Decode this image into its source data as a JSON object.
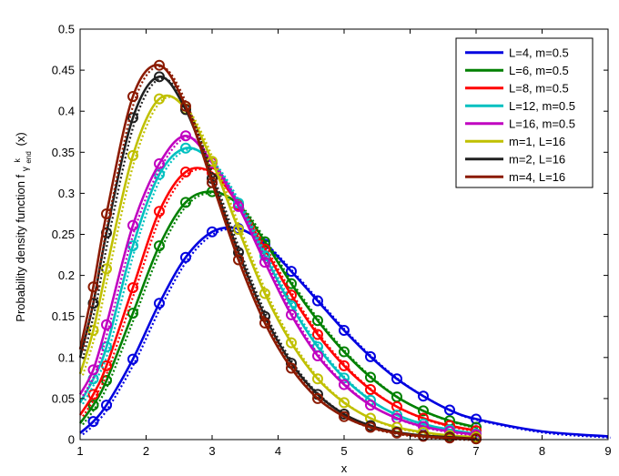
{
  "chart_data": {
    "type": "line",
    "title": "",
    "xlabel": "x",
    "ylabel": "Probability density function f",
    "ylabel_sub": "γ",
    "ylabel_subsub": "end",
    "ylabel_sup": "k",
    "ylabel_arg": "(x)",
    "xlim": [
      1,
      9
    ],
    "ylim": [
      0,
      0.5
    ],
    "xticks": [
      "1",
      "2",
      "3",
      "4",
      "5",
      "6",
      "7",
      "8",
      "9"
    ],
    "yticks": [
      "0",
      "0.05",
      "0.1",
      "0.15",
      "0.2",
      "0.25",
      "0.3",
      "0.35",
      "0.4",
      "0.45",
      "0.5"
    ],
    "grid": false,
    "legend_position": "top-right",
    "line_style_note": "solid line = one set, dotted line = other set, circle markers = third set",
    "series": [
      {
        "name": "L=4, m=0.5",
        "color": "#0000e0",
        "x": [
          1,
          1.2,
          1.4,
          1.8,
          2.2,
          2.6,
          3,
          3.4,
          3.8,
          4.2,
          4.6,
          5,
          5.4,
          5.8,
          6.2,
          6.6,
          7,
          8,
          9
        ],
        "y": [
          0.008,
          0.022,
          0.042,
          0.098,
          0.166,
          0.222,
          0.253,
          0.257,
          0.238,
          0.205,
          0.169,
          0.133,
          0.101,
          0.074,
          0.053,
          0.036,
          0.025,
          0.01,
          0.004
        ],
        "markers_x": [
          1.2,
          1.4,
          1.8,
          2.2,
          2.6,
          3,
          3.4,
          3.8,
          4.2,
          4.6,
          5,
          5.4,
          5.8,
          6.2,
          6.6,
          7
        ]
      },
      {
        "name": "L=6, m=0.5",
        "color": "#008000",
        "x": [
          1,
          1.2,
          1.4,
          1.8,
          2.2,
          2.6,
          3,
          3.4,
          3.8,
          4.2,
          4.6,
          5,
          5.4,
          5.8,
          6.2,
          6.6,
          7
        ],
        "y": [
          0.02,
          0.042,
          0.072,
          0.154,
          0.236,
          0.289,
          0.302,
          0.286,
          0.241,
          0.19,
          0.145,
          0.107,
          0.076,
          0.052,
          0.035,
          0.023,
          0.015
        ],
        "markers_x": [
          1.2,
          1.4,
          1.8,
          2.2,
          2.6,
          3,
          3.4,
          3.8,
          4.2,
          4.6,
          5,
          5.4,
          5.8,
          6.2,
          6.6,
          7
        ]
      },
      {
        "name": "L=8, m=0.5",
        "color": "#ff0000",
        "x": [
          1,
          1.2,
          1.4,
          1.8,
          2.2,
          2.6,
          3,
          3.4,
          3.8,
          4.2,
          4.6,
          5,
          5.4,
          5.8,
          6.2,
          6.6,
          7
        ],
        "y": [
          0.03,
          0.055,
          0.09,
          0.185,
          0.278,
          0.326,
          0.325,
          0.286,
          0.232,
          0.176,
          0.128,
          0.09,
          0.061,
          0.04,
          0.026,
          0.017,
          0.011
        ],
        "markers_x": [
          1.2,
          1.4,
          1.8,
          2.2,
          2.6,
          3,
          3.4,
          3.8,
          4.2,
          4.6,
          5,
          5.4,
          5.8,
          6.2,
          6.6,
          7
        ]
      },
      {
        "name": "L=12, m=0.5",
        "color": "#00c0c0",
        "x": [
          1,
          1.2,
          1.4,
          1.8,
          2.2,
          2.6,
          3,
          3.4,
          3.8,
          4.2,
          4.6,
          5,
          5.4,
          5.8,
          6.2,
          6.6,
          7
        ],
        "y": [
          0.045,
          0.074,
          0.113,
          0.236,
          0.323,
          0.355,
          0.338,
          0.288,
          0.224,
          0.163,
          0.113,
          0.075,
          0.048,
          0.03,
          0.019,
          0.012,
          0.007
        ],
        "markers_x": [
          1.2,
          1.4,
          1.8,
          2.2,
          2.6,
          3,
          3.4,
          3.8,
          4.2,
          4.6,
          5,
          5.4,
          5.8,
          6.2,
          6.6,
          7
        ]
      },
      {
        "name": "L=16, m=0.5",
        "color": "#c000c0",
        "x": [
          1,
          1.2,
          1.4,
          1.8,
          2.2,
          2.6,
          3,
          3.4,
          3.8,
          4.2,
          4.6,
          5,
          5.4,
          5.8,
          6.2,
          6.6,
          7
        ],
        "y": [
          0.055,
          0.085,
          0.14,
          0.261,
          0.336,
          0.37,
          0.337,
          0.284,
          0.216,
          0.152,
          0.102,
          0.067,
          0.042,
          0.026,
          0.016,
          0.01,
          0.006
        ],
        "markers_x": [
          1.2,
          1.4,
          1.8,
          2.2,
          2.6,
          3,
          3.4,
          3.8,
          4.2,
          4.6,
          5,
          5.4,
          5.8,
          6.2,
          6.6,
          7
        ]
      },
      {
        "name": "m=1, L=16",
        "color": "#c0c000",
        "x": [
          1,
          1.2,
          1.4,
          1.8,
          2.2,
          2.6,
          3,
          3.4,
          3.8,
          4.2,
          4.6,
          5,
          5.4,
          5.8,
          6.2,
          6.6,
          7
        ],
        "y": [
          0.08,
          0.133,
          0.208,
          0.346,
          0.415,
          0.403,
          0.339,
          0.256,
          0.178,
          0.118,
          0.074,
          0.045,
          0.026,
          0.015,
          0.009,
          0.005,
          0.003
        ],
        "markers_x": [
          1.2,
          1.4,
          1.8,
          2.2,
          2.6,
          3,
          3.4,
          3.8,
          4.2,
          4.6,
          5,
          5.4,
          5.8,
          6.2,
          6.6,
          7
        ]
      },
      {
        "name": "m=2, L=16",
        "color": "#202020",
        "x": [
          1,
          1.2,
          1.4,
          1.8,
          2.2,
          2.6,
          3,
          3.4,
          3.8,
          4.2,
          4.6,
          5,
          5.4,
          5.8,
          6.2,
          6.6,
          7
        ],
        "y": [
          0.1,
          0.166,
          0.252,
          0.392,
          0.442,
          0.402,
          0.318,
          0.228,
          0.15,
          0.093,
          0.055,
          0.031,
          0.017,
          0.009,
          0.005,
          0.003,
          0.001
        ],
        "markers_x": [
          1.2,
          1.4,
          1.8,
          2.2,
          2.6,
          3,
          3.4,
          3.8,
          4.2,
          4.6,
          5,
          5.4,
          5.8,
          6.2,
          6.6,
          7
        ]
      },
      {
        "name": "m=4, L=16",
        "color": "#8b1a00",
        "x": [
          1,
          1.2,
          1.4,
          1.8,
          2.2,
          2.6,
          3,
          3.4,
          3.8,
          4.2,
          4.6,
          5,
          5.4,
          5.8,
          6.2,
          6.6,
          7
        ],
        "y": [
          0.11,
          0.186,
          0.275,
          0.418,
          0.456,
          0.406,
          0.313,
          0.219,
          0.142,
          0.087,
          0.05,
          0.028,
          0.015,
          0.008,
          0.004,
          0.002,
          0.001
        ],
        "markers_x": [
          1.2,
          1.4,
          1.8,
          2.2,
          2.6,
          3,
          3.4,
          3.8,
          4.2,
          4.6,
          5,
          5.4,
          5.8,
          6.2,
          6.6,
          7
        ]
      }
    ]
  }
}
